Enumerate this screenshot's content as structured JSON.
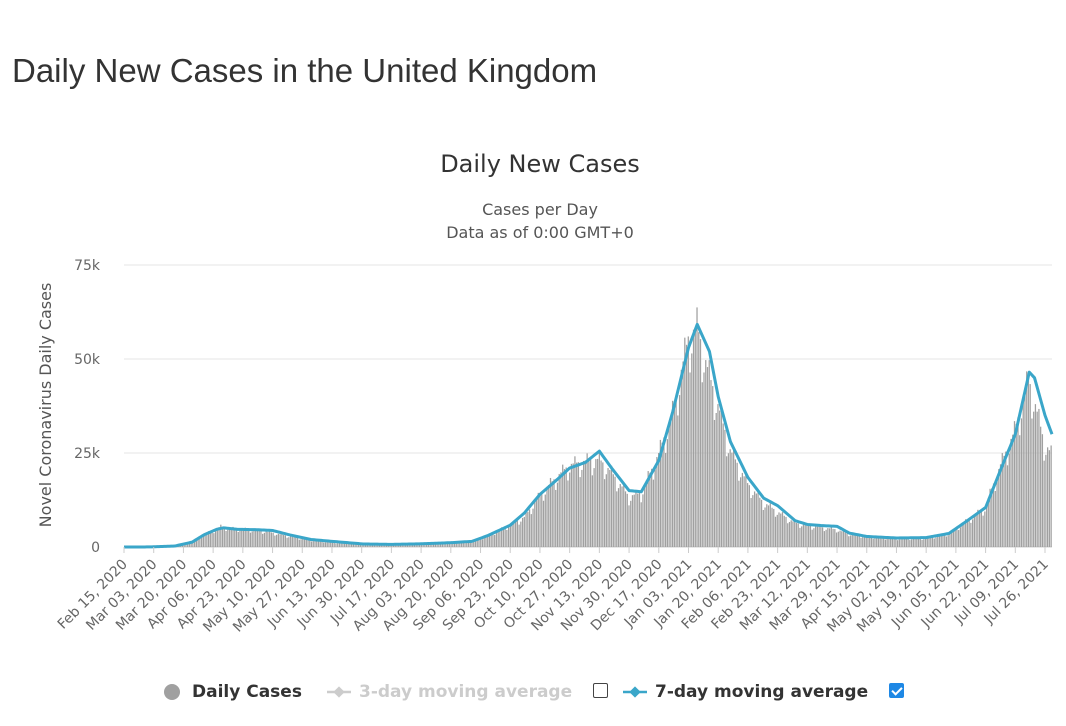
{
  "page": {
    "title": "Daily New Cases in the United Kingdom"
  },
  "chart_data": {
    "type": "bar",
    "title": "Daily New Cases",
    "subtitle_lines": [
      "Cases per Day",
      "Data as of 0:00 GMT+0"
    ],
    "ylabel": "Novel Coronavirus Daily Cases",
    "xlabel": "",
    "ylim": [
      0,
      75000
    ],
    "y_ticks": [
      {
        "value": 0,
        "label": "0"
      },
      {
        "value": 25000,
        "label": "25k"
      },
      {
        "value": 50000,
        "label": "50k"
      },
      {
        "value": 75000,
        "label": "75k"
      }
    ],
    "x_start": "2020-02-15",
    "x_end": "2021-07-30",
    "x_tick_labels": [
      "Feb 15, 2020",
      "Mar 03, 2020",
      "Mar 20, 2020",
      "Apr 06, 2020",
      "Apr 23, 2020",
      "May 10, 2020",
      "May 27, 2020",
      "Jun 13, 2020",
      "Jun 30, 2020",
      "Jul 17, 2020",
      "Aug 03, 2020",
      "Aug 20, 2020",
      "Sep 06, 2020",
      "Sep 23, 2020",
      "Oct 10, 2020",
      "Oct 27, 2020",
      "Nov 13, 2020",
      "Nov 30, 2020",
      "Dec 17, 2020",
      "Jan 03, 2021",
      "Jan 20, 2021",
      "Feb 06, 2021",
      "Feb 23, 2021",
      "Mar 12, 2021",
      "Mar 29, 2021",
      "Apr 15, 2021",
      "May 02, 2021",
      "May 19, 2021",
      "Jun 05, 2021",
      "Jun 22, 2021",
      "Jul 09, 2021",
      "Jul 26, 2021"
    ],
    "grid": true,
    "legend_position": "bottom",
    "series": [
      {
        "name": "Daily Cases",
        "type": "bar",
        "color": "#a0a0a0",
        "visible": true,
        "points": [
          [
            "2020-02-15",
            0
          ],
          [
            "2020-03-01",
            20
          ],
          [
            "2020-03-15",
            300
          ],
          [
            "2020-03-25",
            1500
          ],
          [
            "2020-04-01",
            3500
          ],
          [
            "2020-04-06",
            4500
          ],
          [
            "2020-04-10",
            5500
          ],
          [
            "2020-04-15",
            5000
          ],
          [
            "2020-04-23",
            4800
          ],
          [
            "2020-05-01",
            4500
          ],
          [
            "2020-05-10",
            3800
          ],
          [
            "2020-05-20",
            2800
          ],
          [
            "2020-06-01",
            1800
          ],
          [
            "2020-06-13",
            1200
          ],
          [
            "2020-07-01",
            800
          ],
          [
            "2020-07-17",
            650
          ],
          [
            "2020-08-03",
            800
          ],
          [
            "2020-08-20",
            1100
          ],
          [
            "2020-09-01",
            1500
          ],
          [
            "2020-09-10",
            3000
          ],
          [
            "2020-09-23",
            6000
          ],
          [
            "2020-10-01",
            8000
          ],
          [
            "2020-10-10",
            14000
          ],
          [
            "2020-10-20",
            19000
          ],
          [
            "2020-10-27",
            22000
          ],
          [
            "2020-11-05",
            23000
          ],
          [
            "2020-11-13",
            23500
          ],
          [
            "2020-11-20",
            20000
          ],
          [
            "2020-11-30",
            13500
          ],
          [
            "2020-12-07",
            14500
          ],
          [
            "2020-12-17",
            25000
          ],
          [
            "2020-12-25",
            36000
          ],
          [
            "2021-01-03",
            56000
          ],
          [
            "2021-01-08",
            59000
          ],
          [
            "2021-01-15",
            46000
          ],
          [
            "2021-01-20",
            38000
          ],
          [
            "2021-01-27",
            26000
          ],
          [
            "2021-02-06",
            17000
          ],
          [
            "2021-02-15",
            12000
          ],
          [
            "2021-02-23",
            9500
          ],
          [
            "2021-03-05",
            6500
          ],
          [
            "2021-03-12",
            5800
          ],
          [
            "2021-03-20",
            5300
          ],
          [
            "2021-03-29",
            4700
          ],
          [
            "2021-04-05",
            3500
          ],
          [
            "2021-04-15",
            2800
          ],
          [
            "2021-05-02",
            2200
          ],
          [
            "2021-05-19",
            2300
          ],
          [
            "2021-06-01",
            3500
          ],
          [
            "2021-06-10",
            6500
          ],
          [
            "2021-06-22",
            10500
          ],
          [
            "2021-07-01",
            22000
          ],
          [
            "2021-07-09",
            31000
          ],
          [
            "2021-07-17",
            45000
          ],
          [
            "2021-07-20",
            40000
          ],
          [
            "2021-07-26",
            28000
          ],
          [
            "2021-07-30",
            25000
          ]
        ]
      },
      {
        "name": "3-day moving average",
        "type": "line",
        "color": "#cccccc",
        "visible": false,
        "points": []
      },
      {
        "name": "7-day moving average",
        "type": "line",
        "color": "#3aa6c9",
        "visible": true,
        "points": [
          [
            "2020-02-15",
            0
          ],
          [
            "2020-03-01",
            20
          ],
          [
            "2020-03-15",
            250
          ],
          [
            "2020-03-25",
            1300
          ],
          [
            "2020-04-01",
            3300
          ],
          [
            "2020-04-08",
            4700
          ],
          [
            "2020-04-12",
            5100
          ],
          [
            "2020-04-20",
            4700
          ],
          [
            "2020-05-01",
            4600
          ],
          [
            "2020-05-10",
            4400
          ],
          [
            "2020-05-20",
            3200
          ],
          [
            "2020-06-01",
            2000
          ],
          [
            "2020-06-13",
            1500
          ],
          [
            "2020-07-01",
            800
          ],
          [
            "2020-07-17",
            700
          ],
          [
            "2020-08-03",
            850
          ],
          [
            "2020-08-20",
            1150
          ],
          [
            "2020-09-01",
            1500
          ],
          [
            "2020-09-10",
            3000
          ],
          [
            "2020-09-23",
            5800
          ],
          [
            "2020-10-01",
            9000
          ],
          [
            "2020-10-10",
            14000
          ],
          [
            "2020-10-20",
            18000
          ],
          [
            "2020-10-27",
            21000
          ],
          [
            "2020-11-05",
            22500
          ],
          [
            "2020-11-13",
            25500
          ],
          [
            "2020-11-20",
            21000
          ],
          [
            "2020-11-30",
            15000
          ],
          [
            "2020-12-07",
            14700
          ],
          [
            "2020-12-17",
            23000
          ],
          [
            "2020-12-25",
            36000
          ],
          [
            "2021-01-03",
            53000
          ],
          [
            "2021-01-08",
            59200
          ],
          [
            "2021-01-15",
            52000
          ],
          [
            "2021-01-20",
            40000
          ],
          [
            "2021-01-27",
            28000
          ],
          [
            "2021-02-06",
            18500
          ],
          [
            "2021-02-15",
            13000
          ],
          [
            "2021-02-23",
            11000
          ],
          [
            "2021-03-05",
            7000
          ],
          [
            "2021-03-12",
            6000
          ],
          [
            "2021-03-20",
            5700
          ],
          [
            "2021-03-29",
            5500
          ],
          [
            "2021-04-05",
            3700
          ],
          [
            "2021-04-15",
            2800
          ],
          [
            "2021-05-02",
            2400
          ],
          [
            "2021-05-19",
            2500
          ],
          [
            "2021-06-01",
            3600
          ],
          [
            "2021-06-10",
            6500
          ],
          [
            "2021-06-22",
            10500
          ],
          [
            "2021-07-01",
            21000
          ],
          [
            "2021-07-09",
            30000
          ],
          [
            "2021-07-17",
            46500
          ],
          [
            "2021-07-20",
            45000
          ],
          [
            "2021-07-26",
            35000
          ],
          [
            "2021-07-30",
            30000
          ]
        ]
      }
    ]
  },
  "legend": {
    "items": [
      {
        "label": "Daily Cases",
        "color": "#a0a0a0",
        "active": true,
        "icon": "circle-marker-icon"
      },
      {
        "label": "3-day moving average",
        "color": "#cccccc",
        "active": false,
        "icon": "line-diamond-marker-icon"
      },
      {
        "label": "7-day moving average",
        "color": "#3aa6c9",
        "active": true,
        "icon": "line-diamond-marker-icon"
      }
    ],
    "checkboxes": [
      {
        "target": "3-day moving average",
        "checked": false
      },
      {
        "target": "7-day moving average",
        "checked": true
      }
    ]
  }
}
